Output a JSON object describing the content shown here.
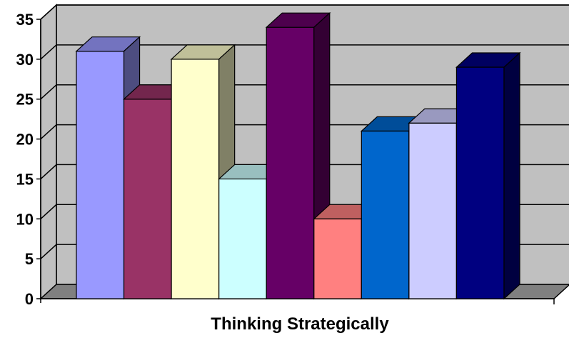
{
  "chart_data": {
    "type": "bar",
    "style": "3d-clustered-column",
    "xlabel": "Thinking Strategically",
    "ylabel": "",
    "title": "",
    "ylim": [
      0,
      35
    ],
    "y_ticks": [
      0,
      5,
      10,
      15,
      20,
      25,
      30,
      35
    ],
    "grid": true,
    "legend": "none",
    "series": [
      {
        "values": [
          31
        ],
        "color": "#9999ff"
      },
      {
        "values": [
          25
        ],
        "color": "#993366"
      },
      {
        "values": [
          30
        ],
        "color": "#ffffcc"
      },
      {
        "values": [
          15
        ],
        "color": "#ccffff"
      },
      {
        "values": [
          34
        ],
        "color": "#660066"
      },
      {
        "values": [
          10
        ],
        "color": "#ff8080"
      },
      {
        "values": [
          21
        ],
        "color": "#0066cc"
      },
      {
        "values": [
          22
        ],
        "color": "#ccccff"
      },
      {
        "values": [
          29
        ],
        "color": "#000080"
      }
    ],
    "wall_color": "#c0c0c0",
    "floor_color": "#808080"
  }
}
